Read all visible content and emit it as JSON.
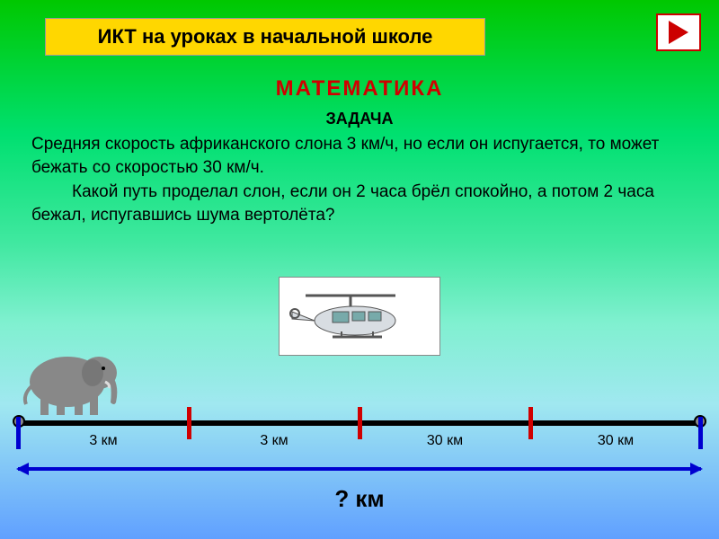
{
  "title": "ИКТ на уроках в начальной школе",
  "subject": "МАТЕМАТИКА",
  "task_label": "ЗАДАЧА",
  "task_p1": "Средняя скорость африканского слона 3 км/ч, но если он испугается, то может бежать со скоростью 30 км/ч.",
  "task_p2": "Какой путь проделал слон, если он 2 часа брёл спокойно, а потом 2 часа бежал, испугавшись шума вертолёта?",
  "numberline": {
    "ticks_pct": [
      25,
      50,
      75
    ],
    "segments": [
      {
        "label": "3 км",
        "pos_pct": 12.5
      },
      {
        "label": "3 км",
        "pos_pct": 37.5
      },
      {
        "label": "30 км",
        "pos_pct": 62.5
      },
      {
        "label": "30 км",
        "pos_pct": 87.5
      }
    ],
    "question_label": "? км",
    "tick_color": "#d00000",
    "line_color": "#000000",
    "arrow_color": "#0000d0"
  },
  "colors": {
    "title_bg": "#ffd700",
    "subject_text": "#d00000",
    "nav_border": "#c00000"
  }
}
